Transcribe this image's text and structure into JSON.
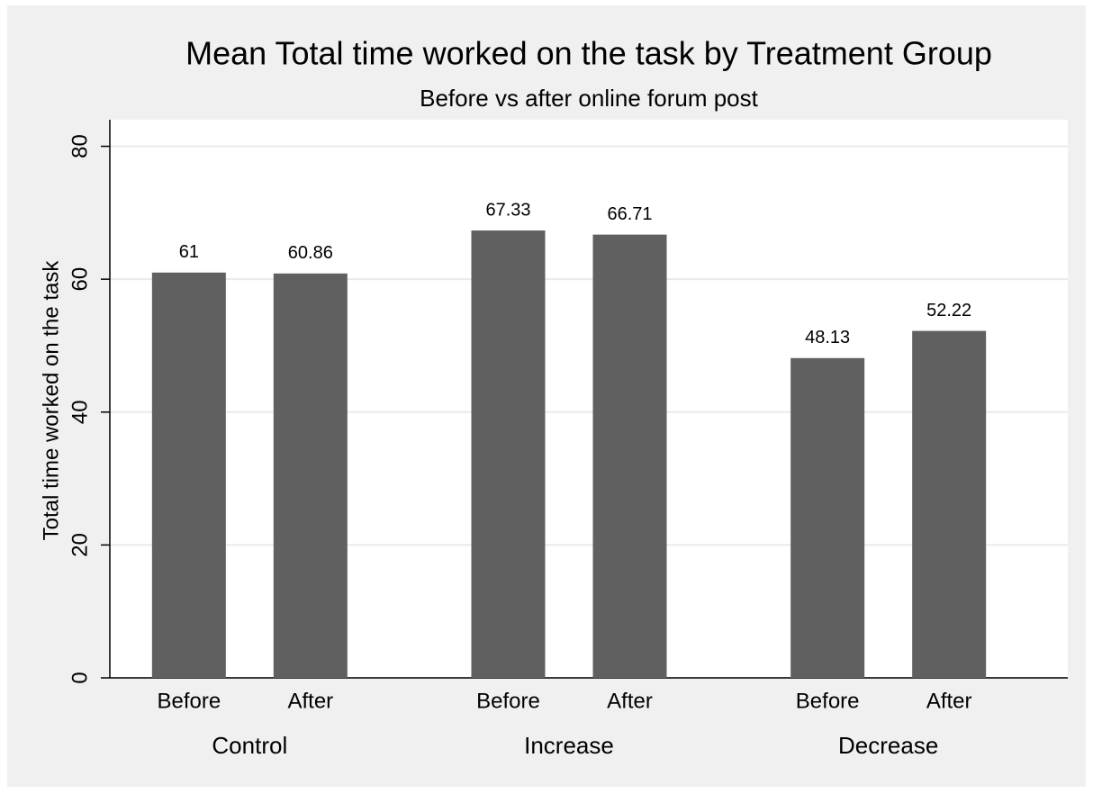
{
  "chart_data": {
    "type": "bar",
    "title": "Mean Total time worked on the task by Treatment Group",
    "subtitle": "Before vs after online forum post",
    "ylabel": "Total time worked on the task",
    "groups": [
      "Control",
      "Increase",
      "Decrease"
    ],
    "categories": [
      "Before",
      "After",
      "Before",
      "After",
      "Before",
      "After"
    ],
    "values": [
      61,
      60.86,
      67.33,
      66.71,
      48.13,
      52.22
    ],
    "color": "#606060",
    "ylim": [
      0,
      84
    ],
    "yticks": [
      0,
      20,
      40,
      60,
      80
    ],
    "grid": true
  }
}
